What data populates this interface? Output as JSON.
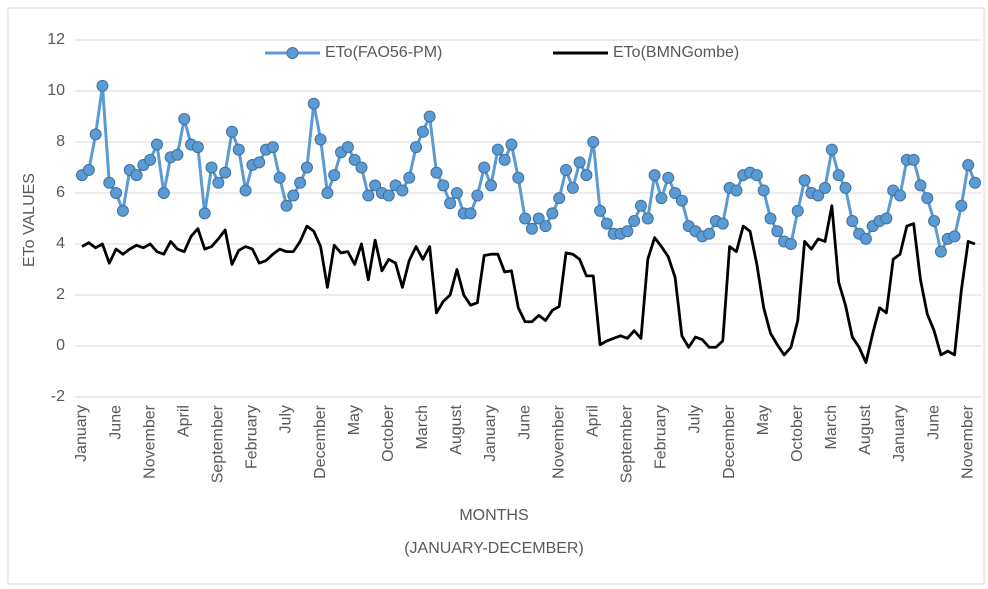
{
  "chart_data": {
    "type": "line",
    "ylabel": "ETo VALUES",
    "xlabel": [
      "MONTHS",
      "(JANUARY-DECEMBER)"
    ],
    "categories": [
      "January",
      null,
      null,
      null,
      null,
      "June",
      null,
      null,
      null,
      null,
      "November",
      null,
      null,
      null,
      null,
      "April",
      null,
      null,
      null,
      null,
      "September",
      null,
      null,
      null,
      null,
      "February",
      null,
      null,
      null,
      null,
      "July",
      null,
      null,
      null,
      null,
      "December",
      null,
      null,
      null,
      null,
      "May",
      null,
      null,
      null,
      null,
      "October",
      null,
      null,
      null,
      null,
      "March",
      null,
      null,
      null,
      null,
      "August",
      null,
      null,
      null,
      null,
      "January",
      null,
      null,
      null,
      null,
      "June",
      null,
      null,
      null,
      null,
      "November",
      null,
      null,
      null,
      null,
      "April",
      null,
      null,
      null,
      null,
      "September",
      null,
      null,
      null,
      null,
      "February",
      null,
      null,
      null,
      null,
      "July",
      null,
      null,
      null,
      null,
      "December",
      null,
      null,
      null,
      null,
      "May",
      null,
      null,
      null,
      null,
      "October",
      null,
      null,
      null,
      null,
      "March",
      null,
      null,
      null,
      null,
      "August",
      null,
      null,
      null,
      null,
      "January",
      null,
      null,
      null,
      null,
      "June",
      null,
      null,
      null,
      null,
      "November",
      null
    ],
    "series": [
      {
        "name": "ETo(FAO56-PM)",
        "color": "#5b9bd5",
        "marker": true,
        "values": [
          6.7,
          6.9,
          8.3,
          10.2,
          6.4,
          6.0,
          5.3,
          6.9,
          6.7,
          7.1,
          7.3,
          7.9,
          6.0,
          7.4,
          7.5,
          8.9,
          7.9,
          7.8,
          5.2,
          7.0,
          6.4,
          6.8,
          8.4,
          7.7,
          6.1,
          7.1,
          7.2,
          7.7,
          7.8,
          6.6,
          5.5,
          5.9,
          6.4,
          7.0,
          9.5,
          8.1,
          6.0,
          6.7,
          7.6,
          7.8,
          7.3,
          7.0,
          5.9,
          6.3,
          6.0,
          5.9,
          6.3,
          6.1,
          6.6,
          7.8,
          8.4,
          9.0,
          6.8,
          6.3,
          5.6,
          6.0,
          5.2,
          5.2,
          5.9,
          7.0,
          6.3,
          7.7,
          7.3,
          7.9,
          6.6,
          5.0,
          4.6,
          5.0,
          4.7,
          5.2,
          5.8,
          6.9,
          6.2,
          7.2,
          6.7,
          8.0,
          5.3,
          4.8,
          4.4,
          4.4,
          4.5,
          4.9,
          5.5,
          5.0,
          6.7,
          5.8,
          6.6,
          6.0,
          5.7,
          4.7,
          4.5,
          4.3,
          4.4,
          4.9,
          4.8,
          6.2,
          6.1,
          6.7,
          6.8,
          6.7,
          6.1,
          5.0,
          4.5,
          4.1,
          4.0,
          5.3,
          6.5,
          6.0,
          5.9,
          6.2,
          7.7,
          6.7,
          6.2,
          4.9,
          4.4,
          4.2,
          4.7,
          4.9,
          5.0,
          6.1,
          5.9,
          7.3,
          7.3,
          6.3,
          5.8,
          4.9,
          3.7,
          4.2,
          4.3,
          5.5,
          7.1,
          6.4
        ]
      },
      {
        "name": "ETo(BMNGombe)",
        "color": "#000000",
        "marker": false,
        "values": [
          3.9,
          4.05,
          3.85,
          4.0,
          3.25,
          3.8,
          3.6,
          3.8,
          3.95,
          3.85,
          4.0,
          3.7,
          3.6,
          4.1,
          3.8,
          3.7,
          4.3,
          4.6,
          3.8,
          3.9,
          4.2,
          4.55,
          3.2,
          3.75,
          3.9,
          3.8,
          3.25,
          3.35,
          3.6,
          3.8,
          3.7,
          3.7,
          4.1,
          4.7,
          4.5,
          3.9,
          2.3,
          3.95,
          3.65,
          3.7,
          3.2,
          4.0,
          2.6,
          4.15,
          2.95,
          3.4,
          3.25,
          2.3,
          3.35,
          3.9,
          3.4,
          3.9,
          1.3,
          1.75,
          2.0,
          3.0,
          2.0,
          1.6,
          1.7,
          3.55,
          3.6,
          3.6,
          2.9,
          2.95,
          1.5,
          0.95,
          0.95,
          1.2,
          1.0,
          1.4,
          1.55,
          3.65,
          3.6,
          3.4,
          2.75,
          2.75,
          0.05,
          0.2,
          0.3,
          0.4,
          0.3,
          0.6,
          0.3,
          3.4,
          4.25,
          3.9,
          3.5,
          2.7,
          0.4,
          -0.05,
          0.35,
          0.25,
          -0.05,
          -0.05,
          0.2,
          3.9,
          3.7,
          4.7,
          4.5,
          3.2,
          1.5,
          0.5,
          0.05,
          -0.35,
          -0.05,
          1.0,
          4.1,
          3.8,
          4.2,
          4.1,
          5.5,
          2.5,
          1.6,
          0.35,
          -0.05,
          -0.65,
          0.5,
          1.5,
          1.3,
          3.4,
          3.6,
          4.7,
          4.8,
          2.6,
          1.25,
          0.6,
          -0.35,
          -0.2,
          -0.35,
          2.2,
          4.1,
          4.0
        ]
      }
    ],
    "ylim": [
      -2,
      12
    ],
    "yticks": [
      -2,
      0,
      2,
      4,
      6,
      8,
      10,
      12
    ],
    "grid": true,
    "legend": "top"
  }
}
